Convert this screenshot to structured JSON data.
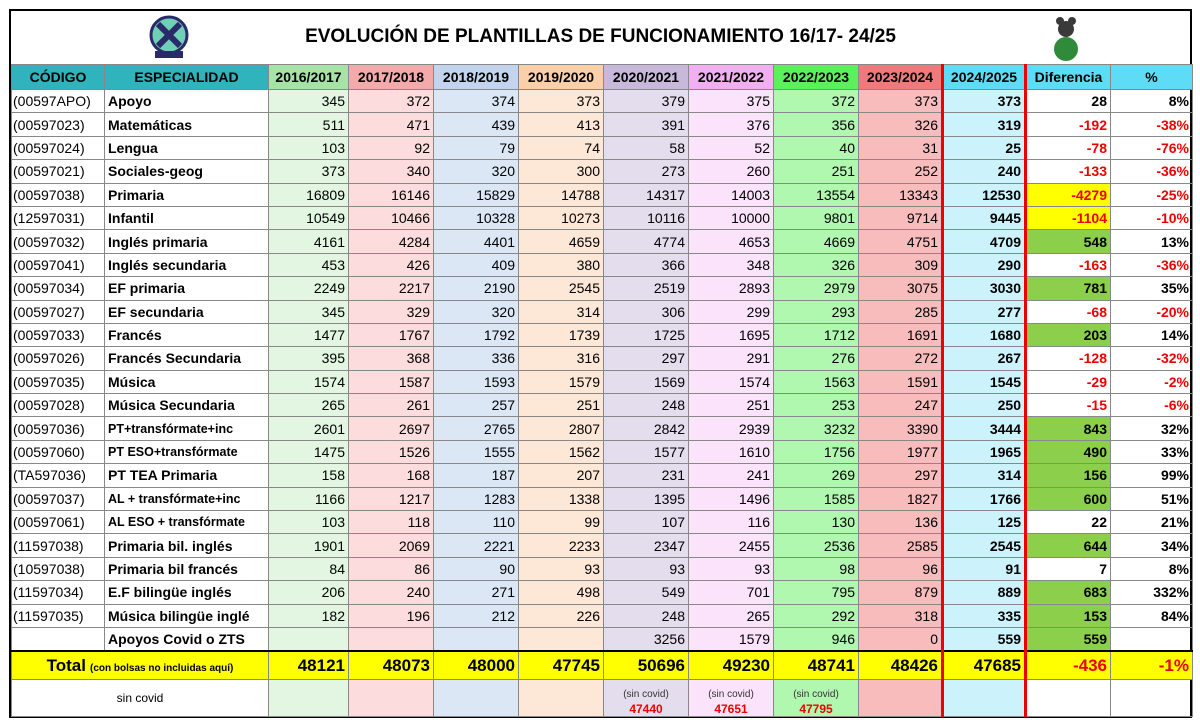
{
  "header": {
    "title": "EVOLUCIÓN DE PLANTILLAS DE FUNCIONAMIENTO 16/17- 24/25"
  },
  "table": {
    "columns": [
      "CÓDIGO",
      "ESPECIALIDAD",
      "2016/2017",
      "2017/2018",
      "2018/2019",
      "2019/2020",
      "2020/2021",
      "2021/2022",
      "2022/2023",
      "2023/2024",
      "2024/2025",
      "Diferencia",
      "%"
    ],
    "rows": [
      {
        "code": "(00597APO)",
        "name": "Apoyo",
        "values": [
          345,
          372,
          374,
          373,
          379,
          375,
          372,
          373,
          373
        ],
        "diff": 28,
        "pct": "8%"
      },
      {
        "code": "(00597023)",
        "name": "Matemáticas",
        "values": [
          511,
          471,
          439,
          413,
          391,
          376,
          356,
          326,
          319
        ],
        "diff": -192,
        "pct": "-38%"
      },
      {
        "code": "(00597024)",
        "name": "Lengua",
        "values": [
          103,
          92,
          79,
          74,
          58,
          52,
          40,
          31,
          25
        ],
        "diff": -78,
        "pct": "-76%"
      },
      {
        "code": "(00597021)",
        "name": "Sociales-geog",
        "values": [
          373,
          340,
          320,
          300,
          273,
          260,
          251,
          252,
          240
        ],
        "diff": -133,
        "pct": "-36%"
      },
      {
        "code": "(00597038)",
        "name": "Primaria",
        "values": [
          16809,
          16146,
          15829,
          14788,
          14317,
          14003,
          13554,
          13343,
          12530
        ],
        "diff": -4279,
        "pct": "-25%"
      },
      {
        "code": "(12597031)",
        "name": "Infantil",
        "values": [
          10549,
          10466,
          10328,
          10273,
          10116,
          10000,
          9801,
          9714,
          9445
        ],
        "diff": -1104,
        "pct": "-10%"
      },
      {
        "code": "(00597032)",
        "name": "Inglés primaria",
        "values": [
          4161,
          4284,
          4401,
          4659,
          4774,
          4653,
          4669,
          4751,
          4709
        ],
        "diff": 548,
        "pct": "13%"
      },
      {
        "code": "(00597041)",
        "name": "Inglés secundaria",
        "values": [
          453,
          426,
          409,
          380,
          366,
          348,
          326,
          309,
          290
        ],
        "diff": -163,
        "pct": "-36%"
      },
      {
        "code": "(00597034)",
        "name": "EF primaria",
        "values": [
          2249,
          2217,
          2190,
          2545,
          2519,
          2893,
          2979,
          3075,
          3030
        ],
        "diff": 781,
        "pct": "35%"
      },
      {
        "code": "(00597027)",
        "name": "EF secundaria",
        "values": [
          345,
          329,
          320,
          314,
          306,
          299,
          293,
          285,
          277
        ],
        "diff": -68,
        "pct": "-20%"
      },
      {
        "code": "(00597033)",
        "name": "Francés",
        "values": [
          1477,
          1767,
          1792,
          1739,
          1725,
          1695,
          1712,
          1691,
          1680
        ],
        "diff": 203,
        "pct": "14%"
      },
      {
        "code": "(00597026)",
        "name": "Francés Secundaria",
        "values": [
          395,
          368,
          336,
          316,
          297,
          291,
          276,
          272,
          267
        ],
        "diff": -128,
        "pct": "-32%"
      },
      {
        "code": "(00597035)",
        "name": "Música",
        "values": [
          1574,
          1587,
          1593,
          1579,
          1569,
          1574,
          1563,
          1591,
          1545
        ],
        "diff": -29,
        "pct": "-2%"
      },
      {
        "code": "(00597028)",
        "name": "Música Secundaria",
        "values": [
          265,
          261,
          257,
          251,
          248,
          251,
          253,
          247,
          250
        ],
        "diff": -15,
        "pct": "-6%"
      },
      {
        "code": "(00597036)",
        "name": "PT+transfórmate+inc",
        "values": [
          2601,
          2697,
          2765,
          2807,
          2842,
          2939,
          3232,
          3390,
          3444
        ],
        "diff": 843,
        "pct": "32%"
      },
      {
        "code": "(00597060)",
        "name": "PT ESO+transfórmate",
        "values": [
          1475,
          1526,
          1555,
          1562,
          1577,
          1610,
          1756,
          1977,
          1965
        ],
        "diff": 490,
        "pct": "33%"
      },
      {
        "code": "(TA597036)",
        "name": "PT TEA Primaria",
        "values": [
          158,
          168,
          187,
          207,
          231,
          241,
          269,
          297,
          314
        ],
        "diff": 156,
        "pct": "99%"
      },
      {
        "code": "(00597037)",
        "name": "AL + transfórmate+inc",
        "values": [
          1166,
          1217,
          1283,
          1338,
          1395,
          1496,
          1585,
          1827,
          1766
        ],
        "diff": 600,
        "pct": "51%"
      },
      {
        "code": "(00597061)",
        "name": "AL ESO + transfórmate",
        "values": [
          103,
          118,
          110,
          99,
          107,
          116,
          130,
          136,
          125
        ],
        "diff": 22,
        "pct": "21%"
      },
      {
        "code": "(11597038)",
        "name": "Primaria bil. inglés",
        "values": [
          1901,
          2069,
          2221,
          2233,
          2347,
          2455,
          2536,
          2585,
          2545
        ],
        "diff": 644,
        "pct": "34%"
      },
      {
        "code": "(10597038)",
        "name": "Primaria bil francés",
        "values": [
          84,
          86,
          90,
          93,
          93,
          93,
          98,
          96,
          91
        ],
        "diff": 7,
        "pct": "8%"
      },
      {
        "code": "(11597034)",
        "name": "E.F bilingüe inglés",
        "values": [
          206,
          240,
          271,
          498,
          549,
          701,
          795,
          879,
          889
        ],
        "diff": 683,
        "pct": "332%"
      },
      {
        "code": "(11597035)",
        "name": "Música bilingüe inglé",
        "values": [
          182,
          196,
          212,
          226,
          248,
          265,
          292,
          318,
          335
        ],
        "diff": 153,
        "pct": "84%"
      },
      {
        "code": null,
        "name": "Apoyos Covid o ZTS",
        "values": [
          null,
          null,
          null,
          null,
          3256,
          1579,
          946,
          0,
          559
        ],
        "diff": 559,
        "pct": null
      }
    ],
    "total": {
      "label": "Total",
      "note": "(con bolsas no incluidas aquí)",
      "values": [
        48121,
        48073,
        48000,
        47745,
        50696,
        49230,
        48741,
        48426,
        47685
      ],
      "diff": -436,
      "pct": "-1%"
    },
    "sin_covid": {
      "label": "sin covid",
      "cells": [
        null,
        null,
        null,
        null,
        {
          "note": "(sin covid)",
          "value": 47440
        },
        {
          "note": "(sin covid)",
          "value": 47651
        },
        {
          "note": "(sin covid)",
          "value": 47795
        },
        null,
        null
      ]
    }
  }
}
